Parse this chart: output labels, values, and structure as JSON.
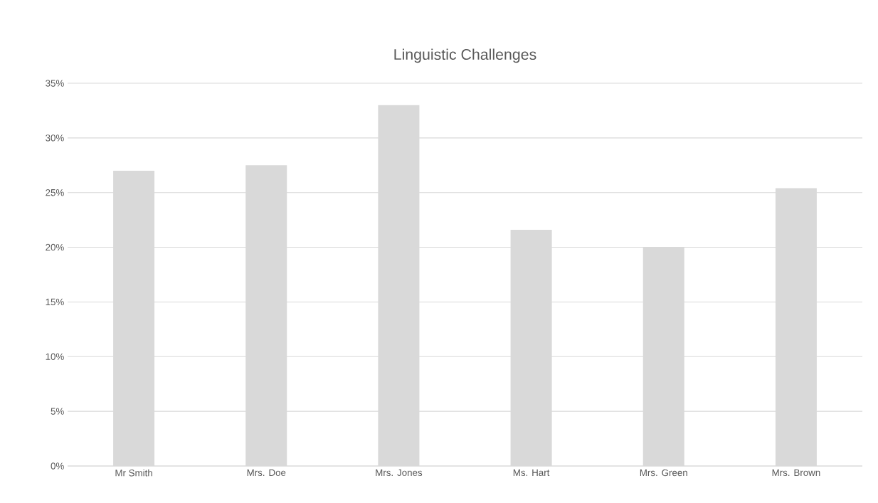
{
  "chart_data": {
    "type": "bar",
    "title": "Linguistic Challenges",
    "categories": [
      "Mr Smith",
      "Mrs. Doe",
      "Mrs. Jones",
      "Ms. Hart",
      "Mrs. Green",
      "Mrs. Brown"
    ],
    "values": [
      27.0,
      27.5,
      33.0,
      21.6,
      20.0,
      25.4
    ],
    "color": "#d9d9d9",
    "ylim": [
      0,
      35
    ],
    "yticks": [
      {
        "value": 0,
        "label": "0%"
      },
      {
        "value": 5,
        "label": "5%"
      },
      {
        "value": 10,
        "label": "10%"
      },
      {
        "value": 15,
        "label": "15%"
      },
      {
        "value": 20,
        "label": "20%"
      },
      {
        "value": 25,
        "label": "25%"
      },
      {
        "value": 30,
        "label": "30%"
      },
      {
        "value": 35,
        "label": "35%"
      }
    ],
    "grid": "y"
  }
}
